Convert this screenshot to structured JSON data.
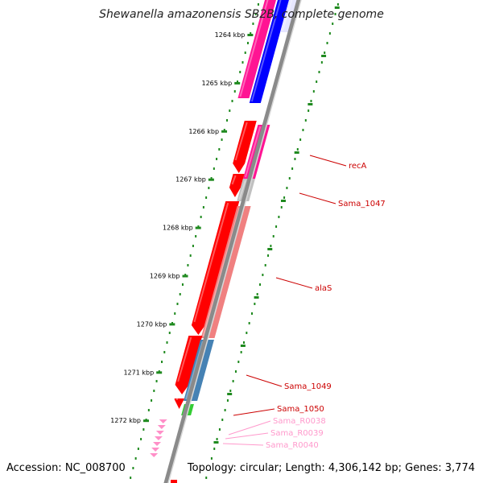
{
  "title": "Shewanella amazonensis SB2B, complete genome",
  "footer": {
    "accession": "Accession: NC_008700",
    "stats": "Topology: circular; Length: 4,306,142 bp; Genes: 3,774"
  },
  "ruler": {
    "unit": "kbp",
    "ticks": [
      "1264 kbp",
      "1265 kbp",
      "1266 kbp",
      "1267 kbp",
      "1268 kbp",
      "1269 kbp",
      "1270 kbp",
      "1271 kbp",
      "1272 kbp"
    ]
  },
  "colors": {
    "backbone": "#8a8a8a",
    "dots": "#1f8a1f",
    "gene_red": "#ff0000",
    "gene_magenta": "#ff1493",
    "gene_blue": "#0000ff",
    "gene_pink": "#f08080",
    "gene_grey": "#c0c0c0",
    "gene_steel": "#4682b4",
    "gene_green": "#33cc33",
    "rna_pink": "#ff8fc8",
    "label_red": "#cc0000",
    "label_pink": "#ff99cc"
  },
  "labels": [
    {
      "text": "recA",
      "color": "label_red"
    },
    {
      "text": "Sama_1047",
      "color": "label_red"
    },
    {
      "text": "alaS",
      "color": "label_red"
    },
    {
      "text": "Sama_1049",
      "color": "label_red"
    },
    {
      "text": "Sama_1050",
      "color": "label_red"
    },
    {
      "text": "Sama_R0038",
      "color": "label_pink"
    },
    {
      "text": "Sama_R0039",
      "color": "label_pink"
    },
    {
      "text": "Sama_R0040",
      "color": "label_pink"
    }
  ]
}
